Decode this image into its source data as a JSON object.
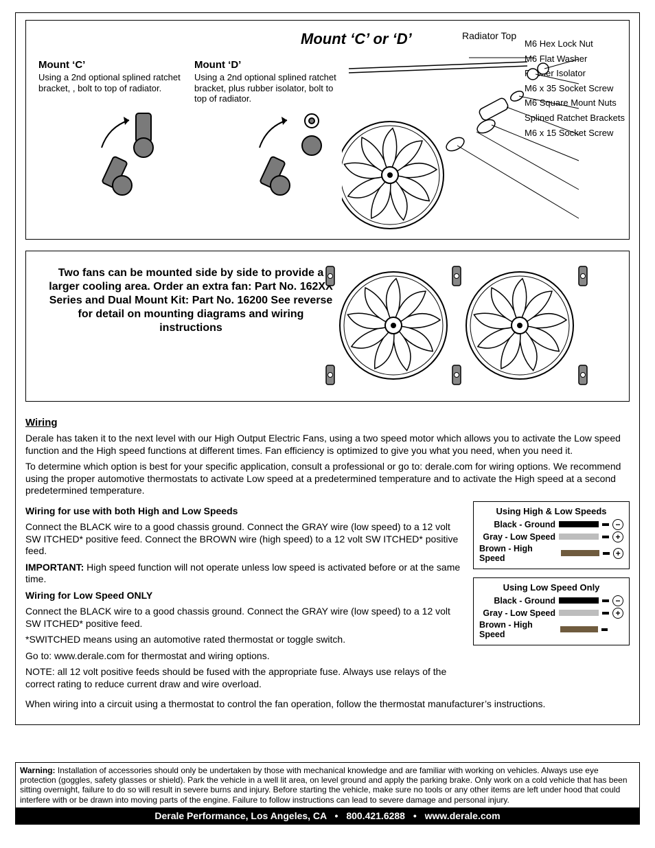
{
  "colors": {
    "border": "#000000",
    "background": "#ffffff",
    "wire_black": "#000000",
    "wire_gray": "#bdbdbd",
    "wire_brown": "#6f5b3e",
    "footer_bg": "#000000",
    "footer_fg": "#ffffff"
  },
  "top": {
    "title": "Mount ‘C’ or ‘D’",
    "radiator_top": "Radiator Top",
    "mount_c": {
      "title": "Mount ‘C’",
      "body": "Using a 2nd optional splined ratchet bracket, , bolt to top of radiator."
    },
    "mount_d": {
      "title": "Mount ‘D’",
      "body": "Using a 2nd optional splined ratchet bracket, plus rubber isolator, bolt to top of radiator."
    },
    "callouts": [
      "M6 Hex Lock Nut",
      "M6 Flat Washer",
      "Rubber Isolator",
      "M6 x 35 Socket Screw",
      "M6 Square Mount Nuts",
      "Splined Ratchet Brackets",
      "M6 x 15 Socket Screw"
    ]
  },
  "dual": {
    "lines": "Two fans can be mounted side by side to provide a larger cooling area. Order an extra fan: Part No. 162XX Series and Dual Mount Kit: Part No. 16200 See reverse for detail on mounting diagrams and wiring instructions"
  },
  "wiring": {
    "heading": "Wiring",
    "intro1": "Derale has taken it to the next level with our High Output Electric Fans, using a two speed motor which allows you to activate the Low speed function and the High speed functions at different times. Fan efficiency is optimized to give you what you need, when you need it.",
    "intro2": "To determine which option is best for your specific application, consult a professional or go to: derale.com for wiring options. We recommend using the proper automotive thermostats to activate Low speed at a predetermined temperature and to activate the High speed at a second predetermined temperature.",
    "sub1_title": "Wiring for use with both High and Low Speeds",
    "sub1_p1": "Connect the BLACK wire to a good chassis ground. Connect the GRAY wire (low speed) to a 12 volt SW ITCHED* positive feed. Connect the BROWN wire (high speed) to a 12 volt SW ITCHED* positive feed.",
    "sub1_p2_prefix": "IMPORTANT:",
    "sub1_p2": " High speed function will not operate unless low speed is activated before or at the same time.",
    "sub2_title": "Wiring for Low Speed ONLY",
    "sub2_p1": "Connect the BLACK wire to a good chassis ground. Connect the GRAY wire (low speed) to a 12 volt SW ITCHED* positive feed.",
    "sub2_p2": "*SWITCHED means using an automotive rated thermostat or toggle switch.",
    "sub2_p3": "Go to: www.derale.com for thermostat and wiring options.",
    "note": "NOTE: all 12 volt positive feeds should be fused with the appropriate fuse. Always use relays of the correct rating to reduce current draw and wire overload.",
    "final": "When wiring into a circuit using a thermostat to control the fan operation, follow the thermostat manufacturer’s instructions.",
    "box1": {
      "title": "Using High & Low Speeds",
      "rows": [
        {
          "label": "Black - Ground",
          "color": "#000000",
          "polarity": "−"
        },
        {
          "label": "Gray - Low Speed",
          "color": "#bdbdbd",
          "polarity": "+"
        },
        {
          "label": "Brown - High Speed",
          "color": "#6f5b3e",
          "polarity": "+"
        }
      ]
    },
    "box2": {
      "title": "Using Low Speed Only",
      "rows": [
        {
          "label": "Black - Ground",
          "color": "#000000",
          "polarity": "−"
        },
        {
          "label": "Gray - Low Speed",
          "color": "#bdbdbd",
          "polarity": "+"
        },
        {
          "label": "Brown - High Speed",
          "color": "#6f5b3e",
          "polarity": ""
        }
      ]
    }
  },
  "warning": {
    "prefix": "Warning:",
    "body": " Installation of accessories should only be undertaken by those with mechanical knowledge and are familiar with working on vehicles.  Always use eye protection (goggles, safety glasses or shield).  Park the vehicle in a well lit area, on level ground and apply the parking brake. Only work on a cold vehicle that has been sitting overnight, failure to do so will result in severe burns and injury.  Before starting the vehicle, make sure no tools or any other items are left under hood that could interfere with or be drawn into moving parts of the engine. Failure to follow instructions can lead to severe damage and personal injury."
  },
  "footer": {
    "company": "Derale Performance, Los Angeles, CA",
    "phone": "800.421.6288",
    "url": "www.derale.com"
  }
}
